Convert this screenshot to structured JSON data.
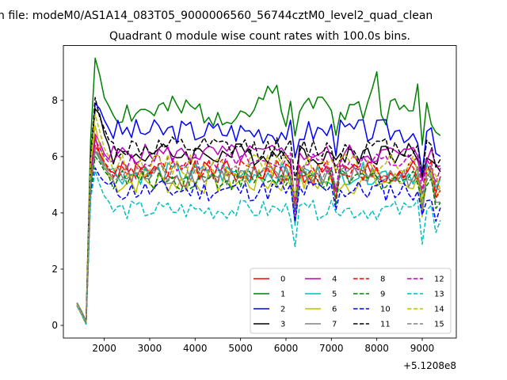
{
  "chart_data": {
    "type": "line",
    "suptitle": "n file: modeM0/AS1A14_083T05_9000006560_56744cztM0_level2_quad_clean",
    "title": "Quadrant 0 module wise count rates with 100.0s bins.",
    "xlabel": "",
    "ylabel": "",
    "x_offset_label": "+5.1208e8",
    "xlim": [
      1100,
      9750
    ],
    "ylim": [
      -0.45,
      9.95
    ],
    "xticks": [
      2000,
      3000,
      4000,
      5000,
      6000,
      7000,
      8000,
      9000
    ],
    "yticks": [
      0,
      2,
      4,
      6,
      8
    ],
    "grid": false,
    "legend": {
      "location": "lower right",
      "columns": 4
    },
    "x_start": 1400,
    "x_step": 100,
    "x_count": 81,
    "series": [
      {
        "name": "0",
        "color": "#ff0000",
        "style": "solid",
        "profile": [
          0.75,
          0.45,
          0.1,
          4.8,
          6.7,
          6.1,
          5.8,
          5.5
        ],
        "base": 5.4,
        "amp": 0.45,
        "seed": 1
      },
      {
        "name": "1",
        "color": "#008000",
        "style": "solid",
        "profile": [
          0.8,
          0.5,
          0.15,
          6.6,
          9.5,
          8.9,
          8.1,
          7.8
        ],
        "base": 7.6,
        "amp": 0.55,
        "seed": 2,
        "bumps": [
          [
            5700,
            1.2,
            250
          ],
          [
            6800,
            1.0,
            450
          ],
          [
            7950,
            1.4,
            200
          ],
          [
            8900,
            0.6,
            250
          ]
        ]
      },
      {
        "name": "2",
        "color": "#0000ff",
        "style": "solid",
        "profile": [
          0.7,
          0.4,
          0.05,
          5.8,
          7.9,
          7.7,
          7.3,
          7.0
        ],
        "base": 6.9,
        "amp": 0.45,
        "seed": 3
      },
      {
        "name": "3",
        "color": "#000000",
        "style": "solid",
        "profile": [
          0.8,
          0.45,
          0.1,
          5.9,
          7.7,
          7.5,
          6.8,
          6.4
        ],
        "base": 6.1,
        "amp": 0.4,
        "seed": 4
      },
      {
        "name": "4",
        "color": "#bf00bf",
        "style": "solid",
        "profile": [
          0.7,
          0.4,
          0.05,
          5.4,
          6.8,
          6.5,
          6.1,
          5.9
        ],
        "base": 6.1,
        "amp": 0.35,
        "seed": 5
      },
      {
        "name": "5",
        "color": "#00bfbf",
        "style": "solid",
        "profile": [
          0.75,
          0.45,
          0.1,
          5.0,
          6.2,
          6.0,
          5.7,
          5.5
        ],
        "base": 5.4,
        "amp": 0.4,
        "seed": 6
      },
      {
        "name": "6",
        "color": "#bfbf00",
        "style": "solid",
        "profile": [
          0.7,
          0.4,
          0.05,
          5.7,
          7.1,
          6.4,
          5.8,
          5.3
        ],
        "base": 5.1,
        "amp": 0.45,
        "seed": 7
      },
      {
        "name": "7",
        "color": "#808080",
        "style": "solid",
        "profile": [
          0.8,
          0.5,
          0.1,
          4.9,
          6.2,
          5.9,
          5.6,
          5.4
        ],
        "base": 5.3,
        "amp": 0.4,
        "seed": 8
      },
      {
        "name": "8",
        "color": "#ff0000",
        "style": "dashed",
        "profile": [
          0.75,
          0.45,
          0.1,
          5.2,
          6.4,
          6.1,
          5.8,
          5.6
        ],
        "base": 5.5,
        "amp": 0.4,
        "seed": 9
      },
      {
        "name": "9",
        "color": "#008000",
        "style": "dashed",
        "profile": [
          0.7,
          0.4,
          0.05,
          4.8,
          6.0,
          5.8,
          5.5,
          5.3
        ],
        "base": 5.2,
        "amp": 0.4,
        "seed": 10
      },
      {
        "name": "10",
        "color": "#0000ff",
        "style": "dashed",
        "profile": [
          0.7,
          0.4,
          0.05,
          4.6,
          5.6,
          5.3,
          5.1,
          5.0
        ],
        "base": 4.8,
        "amp": 0.4,
        "seed": 11
      },
      {
        "name": "11",
        "color": "#000000",
        "style": "dashed",
        "profile": [
          0.8,
          0.5,
          0.1,
          6.0,
          8.1,
          7.4,
          7.0,
          6.6
        ],
        "base": 6.3,
        "amp": 0.4,
        "seed": 12
      },
      {
        "name": "12",
        "color": "#bf00bf",
        "style": "dashed",
        "profile": [
          0.75,
          0.45,
          0.1,
          5.3,
          6.6,
          6.3,
          6.0,
          5.8
        ],
        "base": 5.8,
        "amp": 0.35,
        "seed": 13
      },
      {
        "name": "13",
        "color": "#00bfbf",
        "style": "dashed",
        "profile": [
          0.7,
          0.4,
          0.05,
          4.5,
          5.5,
          5.0,
          4.6,
          4.4
        ],
        "base": 4.1,
        "amp": 0.35,
        "seed": 14
      },
      {
        "name": "14",
        "color": "#bfbf00",
        "style": "dashed",
        "profile": [
          0.75,
          0.45,
          0.1,
          5.8,
          7.5,
          6.9,
          6.3,
          6.0
        ],
        "base": 5.7,
        "amp": 0.4,
        "seed": 15
      },
      {
        "name": "15",
        "color": "#808080",
        "style": "dashed",
        "profile": [
          0.8,
          0.5,
          0.1,
          5.1,
          6.3,
          6.0,
          5.7,
          5.5
        ],
        "base": 5.4,
        "amp": 0.35,
        "seed": 16
      }
    ],
    "dips": [
      [
        6200,
        1.4
      ],
      [
        6250,
        1.0
      ],
      [
        7100,
        0.7
      ],
      [
        8450,
        1.3
      ],
      [
        9000,
        1.2
      ],
      [
        9300,
        0.8
      ],
      [
        9400,
        0.6
      ]
    ]
  }
}
